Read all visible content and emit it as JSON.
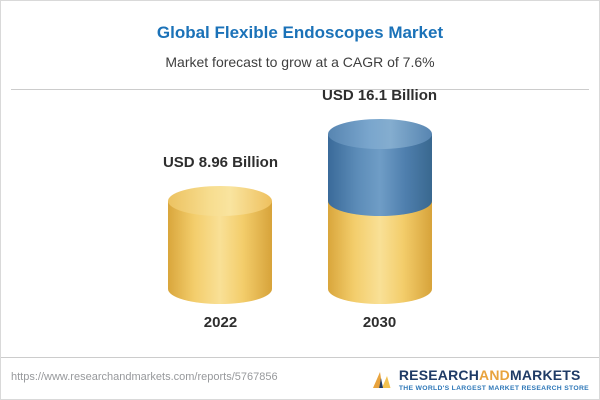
{
  "header": {
    "title": "Global Flexible Endoscopes Market",
    "subtitle": "Market forecast to grow at a CAGR of 7.6%"
  },
  "chart_data": {
    "type": "bar",
    "title": "Global Flexible Endoscopes Market",
    "subtitle": "Market forecast to grow at a CAGR of 7.6%",
    "categories": [
      "2022",
      "2030"
    ],
    "values": [
      8.96,
      16.1
    ],
    "value_labels": [
      "USD 8.96 Billion",
      "USD 16.1 Billion"
    ],
    "unit": "USD Billion",
    "cagr": "7.6%",
    "xlabel": "",
    "ylabel": "",
    "legend": [],
    "grid": false,
    "style_note": "3D cylinder bars; 2030 bar shows the 2022 base value in gold with the growth portion stacked on top in blue",
    "colors": {
      "base_gold": "#f3cd6b",
      "growth_blue": "#5c8cb8"
    }
  },
  "footer": {
    "url": "https://www.researchandmarkets.com/reports/5767856",
    "logo": {
      "research": "RESEARCH",
      "and": "AND",
      "markets": "MARKETS",
      "tagline": "THE WORLD'S LARGEST MARKET RESEARCH STORE"
    }
  }
}
